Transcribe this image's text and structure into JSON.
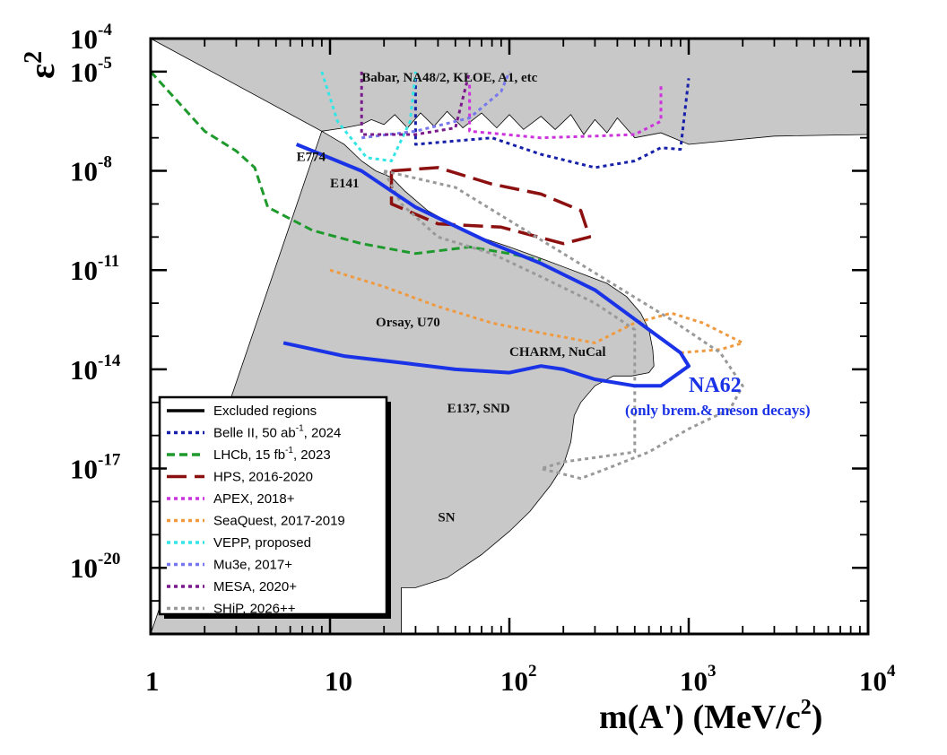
{
  "chart_data": {
    "type": "line",
    "title": "",
    "xlabel": "m(A') (MeV/c",
    "xlabel_sup": "2",
    "xlabel_end": ")",
    "ylabel": "ε",
    "ylabel_sup": "2",
    "x_scale": "log",
    "y_scale": "log",
    "xlim": [
      1,
      10000
    ],
    "ylim_exponent": [
      -22,
      -4
    ],
    "x_ticks": [
      {
        "label": "1",
        "value": 1
      },
      {
        "label": "10",
        "value": 10
      },
      {
        "label": "10",
        "exp": "2",
        "value": 100
      },
      {
        "label": "10",
        "exp": "3",
        "value": 1000
      },
      {
        "label": "10",
        "exp": "4",
        "value": 10000
      }
    ],
    "y_ticks": [
      {
        "label": "10",
        "exp": "-4",
        "value": -4
      },
      {
        "label": "10",
        "exp": "-5",
        "value": -5
      },
      {
        "label": "10",
        "exp": "-8",
        "value": -8
      },
      {
        "label": "10",
        "exp": "-11",
        "value": -11
      },
      {
        "label": "10",
        "exp": "-14",
        "value": -14
      },
      {
        "label": "10",
        "exp": "-17",
        "value": -17
      },
      {
        "label": "10",
        "exp": "-20",
        "value": -20
      }
    ],
    "region_labels": [
      {
        "text": "Babar, NA48/2, KLOE, A1, etc",
        "m": 15,
        "logeps": -5.3
      },
      {
        "text": "E774",
        "m": 6.5,
        "logeps": -7.7
      },
      {
        "text": "E141",
        "m": 10,
        "logeps": -8.5
      },
      {
        "text": "Orsay, U70",
        "m": 18,
        "logeps": -12.7
      },
      {
        "text": "CHARM, NuCal",
        "m": 100,
        "logeps": -13.6
      },
      {
        "text": "E137, SND",
        "m": 45,
        "logeps": -15.3
      },
      {
        "text": "SN",
        "m": 40,
        "logeps": -18.6
      }
    ],
    "annotation": {
      "title": "NA62",
      "subtitle": "(only brem.& meson decays)"
    },
    "excluded_regions": [
      {
        "name": "Excluded regions (upper)",
        "color": "#c8c8c8",
        "points": [
          [
            1,
            -4
          ],
          [
            10000,
            -4
          ],
          [
            10000,
            -6.9
          ],
          [
            3000,
            -6.95
          ],
          [
            1000,
            -7.2
          ],
          [
            700,
            -6.85
          ],
          [
            500,
            -7.0
          ],
          [
            400,
            -6.4
          ],
          [
            350,
            -6.85
          ],
          [
            300,
            -6.45
          ],
          [
            260,
            -6.9
          ],
          [
            220,
            -6.3
          ],
          [
            180,
            -6.75
          ],
          [
            150,
            -6.35
          ],
          [
            120,
            -6.75
          ],
          [
            100,
            -6.3
          ],
          [
            85,
            -6.7
          ],
          [
            70,
            -6.25
          ],
          [
            55,
            -6.7
          ],
          [
            45,
            -6.2
          ],
          [
            38,
            -6.65
          ],
          [
            32,
            -6.25
          ],
          [
            27,
            -6.7
          ],
          [
            23,
            -6.3
          ],
          [
            20,
            -6.6
          ],
          [
            17,
            -6.45
          ],
          [
            15,
            -6.6
          ],
          [
            12,
            -6.7
          ],
          [
            9,
            -6.8
          ]
        ]
      },
      {
        "name": "Excluded regions (lower)",
        "color": "#c8c8c8",
        "points": [
          [
            9,
            -6.8
          ],
          [
            12,
            -7.2
          ],
          [
            15,
            -7.7
          ],
          [
            18,
            -8.0
          ],
          [
            22,
            -8.2
          ],
          [
            26,
            -8.6
          ],
          [
            35,
            -9.2
          ],
          [
            60,
            -9.9
          ],
          [
            100,
            -10.3
          ],
          [
            160,
            -10.7
          ],
          [
            250,
            -11.1
          ],
          [
            350,
            -11.4
          ],
          [
            450,
            -11.8
          ],
          [
            540,
            -12.3
          ],
          [
            600,
            -12.8
          ],
          [
            630,
            -13.4
          ],
          [
            640,
            -13.9
          ],
          [
            600,
            -14.1
          ],
          [
            480,
            -14.2
          ],
          [
            380,
            -14.2
          ],
          [
            300,
            -14.5
          ],
          [
            250,
            -15.0
          ],
          [
            230,
            -15.4
          ],
          [
            220,
            -16.2
          ],
          [
            200,
            -16.9
          ],
          [
            170,
            -17.5
          ],
          [
            130,
            -18.3
          ],
          [
            100,
            -18.9
          ],
          [
            70,
            -19.6
          ],
          [
            45,
            -20.3
          ],
          [
            30,
            -20.6
          ],
          [
            25,
            -20.6
          ],
          [
            25,
            -22
          ],
          [
            1,
            -22
          ]
        ]
      }
    ],
    "series": [
      {
        "name": "Excluded regions",
        "color": "#000000",
        "dash": "solid",
        "points": []
      },
      {
        "name": "Belle II, 50 ab",
        "sup": "-1",
        "suffix": ", 2024",
        "color": "#1620a8",
        "dash": "dot",
        "points": [
          [
            30,
            -5.2
          ],
          [
            30,
            -7.2
          ],
          [
            80,
            -7.0
          ],
          [
            150,
            -7.5
          ],
          [
            300,
            -7.9
          ],
          [
            500,
            -7.7
          ],
          [
            700,
            -7.3
          ],
          [
            900,
            -7.35
          ],
          [
            1000,
            -5.2
          ]
        ]
      },
      {
        "name": "LHCb, 15 fb",
        "sup": "-1",
        "suffix": ", 2023",
        "color": "#1e9a2d",
        "dash": "dash",
        "points": [
          [
            1,
            -5.0
          ],
          [
            2,
            -6.8
          ],
          [
            3,
            -7.4
          ],
          [
            3.8,
            -7.9
          ],
          [
            4.5,
            -9.1
          ],
          [
            8,
            -9.8
          ],
          [
            15,
            -10.2
          ],
          [
            30,
            -10.5
          ],
          [
            60,
            -10.3
          ],
          [
            100,
            -10.5
          ],
          [
            150,
            -10.7
          ]
        ]
      },
      {
        "name": "HPS, 2016-2020",
        "color": "#8c1010",
        "dash": "longdash",
        "points": [
          [
            22,
            -8.0
          ],
          [
            40,
            -7.9
          ],
          [
            80,
            -8.4
          ],
          [
            150,
            -8.7
          ],
          [
            250,
            -9.2
          ],
          [
            280,
            -10.0
          ],
          [
            200,
            -10.2
          ],
          [
            90,
            -9.7
          ],
          [
            40,
            -9.6
          ],
          [
            22,
            -9.0
          ],
          [
            22,
            -8.0
          ]
        ]
      },
      {
        "name": "APEX, 2018+",
        "color": "#cc33dd",
        "dash": "dot",
        "points": [
          [
            60,
            -5.4
          ],
          [
            60,
            -6.8
          ],
          [
            150,
            -7.0
          ],
          [
            300,
            -6.95
          ],
          [
            500,
            -6.9
          ],
          [
            700,
            -6.5
          ],
          [
            700,
            -5.4
          ]
        ]
      },
      {
        "name": "SeaQuest, 2017-2019",
        "color": "#f09a40",
        "dash": "dot",
        "points": [
          [
            10,
            -11.0
          ],
          [
            20,
            -11.5
          ],
          [
            40,
            -12.1
          ],
          [
            80,
            -12.6
          ],
          [
            150,
            -12.9
          ],
          [
            300,
            -13.2
          ],
          [
            500,
            -12.6
          ],
          [
            800,
            -12.3
          ],
          [
            1200,
            -12.6
          ],
          [
            2000,
            -13.2
          ],
          [
            1500,
            -13.4
          ],
          [
            900,
            -13.5
          ]
        ]
      },
      {
        "name": "VEPP, proposed",
        "color": "#33e5e5",
        "dash": "dot",
        "points": [
          [
            9,
            -5.0
          ],
          [
            11,
            -6.5
          ],
          [
            16,
            -7.6
          ],
          [
            22,
            -7.7
          ],
          [
            28,
            -6.5
          ],
          [
            30,
            -5.0
          ]
        ]
      },
      {
        "name": "Mu3e, 2017+",
        "color": "#7777ee",
        "dash": "dot",
        "points": [
          [
            15,
            -7.0
          ],
          [
            30,
            -6.8
          ],
          [
            60,
            -6.4
          ],
          [
            90,
            -5.6
          ],
          [
            100,
            -5.0
          ]
        ]
      },
      {
        "name": "MESA, 2020+",
        "color": "#7a1a8a",
        "dash": "dot",
        "points": [
          [
            15,
            -5.0
          ],
          [
            15,
            -6.9
          ],
          [
            30,
            -6.9
          ],
          [
            50,
            -6.7
          ],
          [
            60,
            -5.0
          ]
        ]
      },
      {
        "name": "SHiP, 2026++",
        "color": "#999999",
        "dash": "dot",
        "points": [
          [
            20,
            -8.0
          ],
          [
            50,
            -8.5
          ],
          [
            100,
            -9.5
          ],
          [
            200,
            -10.5
          ],
          [
            400,
            -11.5
          ],
          [
            800,
            -12.5
          ],
          [
            1500,
            -13.5
          ],
          [
            2000,
            -14.5
          ],
          [
            1700,
            -15.2
          ],
          [
            1000,
            -15.8
          ],
          [
            600,
            -16.5
          ],
          [
            350,
            -17.0
          ],
          [
            250,
            -17.3
          ],
          [
            150,
            -17.0
          ],
          [
            200,
            -16.8
          ],
          [
            500,
            -16.5
          ],
          [
            500,
            -12.8
          ],
          [
            300,
            -12.0
          ],
          [
            150,
            -11.2
          ],
          [
            80,
            -10.5
          ],
          [
            40,
            -10.0
          ],
          [
            25,
            -9.0
          ],
          [
            20,
            -8.0
          ]
        ]
      },
      {
        "name": "NA62 (upper)",
        "color": "#1a33e6",
        "dash": "solid",
        "legend": false,
        "points": [
          [
            6.5,
            -7.2
          ],
          [
            15,
            -8.0
          ],
          [
            30,
            -9.1
          ],
          [
            80,
            -10.2
          ],
          [
            150,
            -10.8
          ],
          [
            300,
            -11.6
          ],
          [
            600,
            -12.8
          ],
          [
            900,
            -13.5
          ],
          [
            1000,
            -13.9
          ],
          [
            700,
            -14.5
          ],
          [
            500,
            -14.5
          ],
          [
            300,
            -14.3
          ],
          [
            200,
            -14.0
          ],
          [
            150,
            -13.9
          ],
          [
            100,
            -14.1
          ],
          [
            50,
            -14.0
          ],
          [
            25,
            -13.8
          ],
          [
            12,
            -13.6
          ],
          [
            5.5,
            -13.2
          ]
        ]
      }
    ]
  }
}
